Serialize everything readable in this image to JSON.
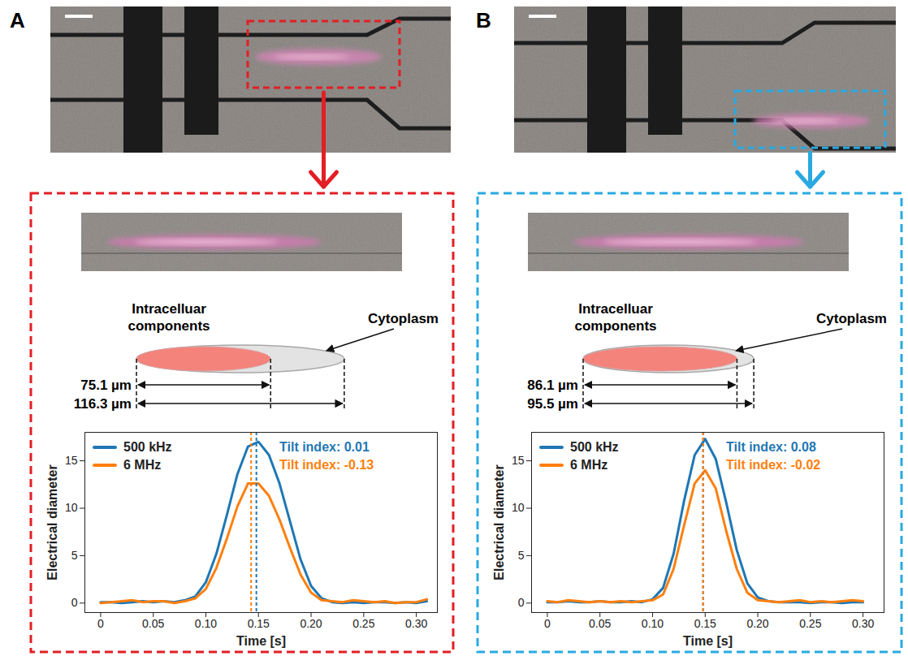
{
  "panels": [
    {
      "letter": "A",
      "color": "#e31e24",
      "schematic": {
        "inner_label": "Intracelluar components",
        "outer_label": "Cytoplasm",
        "inner_length": {
          "value": 75.1,
          "label": "75.1 µm"
        },
        "outer_length": {
          "value": 116.3,
          "label": "116.3 µm"
        }
      }
    },
    {
      "letter": "B",
      "color": "#29a9e1",
      "schematic": {
        "inner_label": "Intracelluar components",
        "outer_label": "Cytoplasm",
        "inner_length": {
          "value": 86.1,
          "label": "86.1 µm"
        },
        "outer_length": {
          "value": 95.5,
          "label": "95.5 µm"
        }
      }
    }
  ],
  "chart_data": [
    {
      "type": "line",
      "xlabel": "Time [s]",
      "ylabel": "Electrical diameter",
      "x": [
        0,
        0.01,
        0.02,
        0.03,
        0.04,
        0.05,
        0.06,
        0.07,
        0.08,
        0.09,
        0.1,
        0.11,
        0.12,
        0.13,
        0.14,
        0.15,
        0.16,
        0.17,
        0.18,
        0.19,
        0.2,
        0.21,
        0.22,
        0.23,
        0.24,
        0.25,
        0.26,
        0.27,
        0.28,
        0.29,
        0.3,
        0.31
      ],
      "series": [
        {
          "name": "500 kHz",
          "color": "#1f77b4",
          "peak_x": 0.148,
          "annotation": "Tilt index: 0.01",
          "values": [
            0.1,
            0.1,
            0.0,
            0.1,
            0.2,
            0.1,
            0.2,
            0.1,
            0.3,
            0.7,
            2.2,
            5.2,
            9.3,
            13.6,
            16.5,
            17.0,
            15.6,
            12.6,
            8.6,
            4.6,
            1.8,
            0.5,
            0.1,
            0.0,
            0.1,
            0.0,
            0.1,
            0.1,
            0.0,
            0.1,
            0.0,
            0.2
          ]
        },
        {
          "name": "6 MHz",
          "color": "#ff7f0e",
          "peak_x": 0.143,
          "annotation": "Tilt index: -0.13",
          "values": [
            0.0,
            0.1,
            0.2,
            0.3,
            0.1,
            0.2,
            0.2,
            0.0,
            0.2,
            0.5,
            1.5,
            3.7,
            6.8,
            10.2,
            12.6,
            12.6,
            11.3,
            8.8,
            5.8,
            3.0,
            1.1,
            0.3,
            0.2,
            0.1,
            0.3,
            0.2,
            0.1,
            0.2,
            0.0,
            0.1,
            0.1,
            0.4
          ]
        }
      ],
      "xlim": [
        -0.015,
        0.32
      ],
      "ylim": [
        -1,
        18
      ],
      "xticks": [
        0,
        0.05,
        {
          "value": 0.1,
          "label": "0.10"
        },
        0.15,
        {
          "value": 0.2,
          "label": "0.20"
        },
        0.25,
        {
          "value": 0.3,
          "label": "0.30"
        }
      ],
      "yticks": [
        0,
        5,
        10,
        15
      ],
      "legend": "upper left",
      "grid": false,
      "line_style": "solid"
    },
    {
      "type": "line",
      "xlabel": "Time [s]",
      "ylabel": "Electrical diameter",
      "x": [
        0,
        0.01,
        0.02,
        0.03,
        0.04,
        0.05,
        0.06,
        0.07,
        0.08,
        0.09,
        0.1,
        0.11,
        0.12,
        0.13,
        0.14,
        0.15,
        0.16,
        0.17,
        0.18,
        0.19,
        0.2,
        0.21,
        0.22,
        0.23,
        0.24,
        0.25,
        0.26,
        0.27,
        0.28,
        0.29,
        0.3
      ],
      "series": [
        {
          "name": "500 kHz",
          "color": "#1f77b4",
          "peak_x": 0.148,
          "annotation": "Tilt index: 0.08",
          "values": [
            0.1,
            0.1,
            0.2,
            0.1,
            0.1,
            0.2,
            0.1,
            0.1,
            0.2,
            0.1,
            0.4,
            1.6,
            5.2,
            10.8,
            15.6,
            17.3,
            15.2,
            10.6,
            5.6,
            2.1,
            0.6,
            0.2,
            0.1,
            0.1,
            0.1,
            0.0,
            0.1,
            0.1,
            0.0,
            0.1,
            0.1
          ]
        },
        {
          "name": "6 MHz",
          "color": "#ff7f0e",
          "peak_x": 0.148,
          "annotation": "Tilt index: -0.02",
          "values": [
            0.2,
            0.1,
            0.3,
            0.2,
            0.1,
            0.2,
            0.1,
            0.2,
            0.1,
            0.2,
            0.3,
            0.9,
            3.6,
            8.2,
            12.6,
            14.0,
            12.1,
            7.6,
            3.6,
            1.1,
            0.3,
            0.2,
            0.1,
            0.2,
            0.3,
            0.1,
            0.2,
            0.1,
            0.2,
            0.3,
            0.2
          ]
        }
      ],
      "xlim": [
        -0.015,
        0.32
      ],
      "ylim": [
        -1,
        18
      ],
      "xticks": [
        0,
        0.05,
        {
          "value": 0.1,
          "label": "0.10"
        },
        0.15,
        {
          "value": 0.2,
          "label": "0.20"
        },
        0.25,
        {
          "value": 0.3,
          "label": "0.30"
        }
      ],
      "yticks": [
        0,
        5,
        10,
        15
      ],
      "legend": "upper left",
      "grid": false,
      "line_style": "solid"
    }
  ]
}
